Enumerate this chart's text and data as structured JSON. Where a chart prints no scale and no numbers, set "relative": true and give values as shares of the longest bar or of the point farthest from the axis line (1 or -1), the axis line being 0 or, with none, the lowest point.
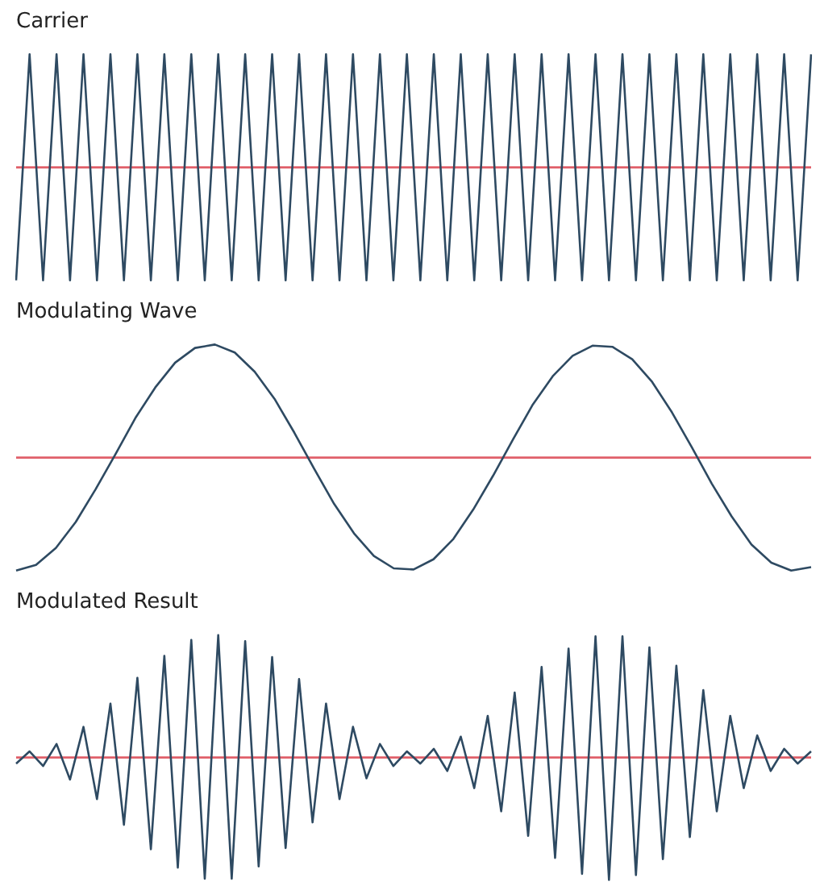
{
  "chart_data": [
    {
      "type": "line",
      "title": "Carrier",
      "relative": true,
      "categories": [
        null,
        null,
        null,
        null,
        null,
        null,
        null,
        null,
        null,
        null,
        null,
        null,
        null,
        null,
        null,
        null,
        null,
        null,
        null,
        null,
        null,
        null,
        null,
        null,
        null,
        null,
        null,
        null,
        null,
        null,
        null,
        null,
        null,
        null,
        null,
        null,
        null,
        null,
        null,
        null,
        null,
        null,
        null,
        null,
        null,
        null,
        null,
        null,
        null,
        null,
        null,
        null,
        null,
        null,
        null,
        null,
        null,
        null,
        null,
        null
      ],
      "series": [
        {
          "color": "#2e4a62",
          "values": [
            -1,
            1,
            -1,
            1,
            -1,
            1,
            -1,
            1,
            -1,
            1,
            -1,
            1,
            -1,
            1,
            -1,
            1,
            -1,
            1,
            -1,
            1,
            -1,
            1,
            -1,
            1,
            -1,
            1,
            -1,
            1,
            -1,
            1,
            -1,
            1,
            -1,
            1,
            -1,
            1,
            -1,
            1,
            -1,
            1,
            -1,
            1,
            -1,
            1,
            -1,
            1,
            -1,
            1,
            -1,
            1,
            -1,
            1,
            -1,
            1,
            -1,
            1,
            -1,
            1,
            -1,
            1
          ]
        }
      ],
      "ref_lines": [
        {
          "axis": "y",
          "value": 0,
          "color": "#e0606a"
        }
      ]
    },
    {
      "type": "line",
      "title": "Modulating Wave",
      "relative": true,
      "categories": [
        null,
        null,
        null,
        null,
        null,
        null,
        null,
        null,
        null,
        null,
        null,
        null,
        null,
        null,
        null,
        null,
        null,
        null,
        null,
        null,
        null,
        null,
        null,
        null,
        null,
        null,
        null,
        null,
        null,
        null,
        null,
        null,
        null,
        null,
        null,
        null,
        null,
        null,
        null,
        null,
        null
      ],
      "series": [
        {
          "color": "#2e4a62",
          "values": [
            -1,
            -0.95,
            -0.8,
            -0.57,
            -0.28,
            0.03,
            0.35,
            0.62,
            0.84,
            0.97,
            1,
            0.93,
            0.76,
            0.52,
            0.22,
            -0.1,
            -0.41,
            -0.67,
            -0.87,
            -0.98,
            -0.99,
            -0.9,
            -0.72,
            -0.46,
            -0.16,
            0.16,
            0.47,
            0.72,
            0.9,
            0.99,
            0.98,
            0.87,
            0.67,
            0.4,
            0.09,
            -0.23,
            -0.52,
            -0.77,
            -0.93,
            -1,
            -0.97
          ]
        }
      ],
      "ref_lines": [
        {
          "axis": "y",
          "value": 0,
          "color": "#e0606a"
        }
      ]
    },
    {
      "type": "line",
      "title": "Modulated Result",
      "relative": true,
      "categories": [
        null,
        null,
        null,
        null,
        null,
        null,
        null,
        null,
        null,
        null,
        null,
        null,
        null,
        null,
        null,
        null,
        null,
        null,
        null,
        null,
        null,
        null,
        null,
        null,
        null,
        null,
        null,
        null,
        null,
        null,
        null,
        null,
        null,
        null,
        null,
        null,
        null,
        null,
        null,
        null,
        null,
        null,
        null,
        null,
        null,
        null,
        null,
        null,
        null,
        null,
        null,
        null,
        null,
        null,
        null,
        null,
        null,
        null,
        null,
        null
      ],
      "series": [
        {
          "color": "#2e4a62",
          "values": [
            -0.05,
            0.05,
            -0.07,
            0.11,
            -0.18,
            0.25,
            -0.34,
            0.44,
            -0.55,
            0.65,
            -0.75,
            0.83,
            -0.9,
            0.96,
            -0.99,
            1,
            -0.99,
            0.95,
            -0.89,
            0.82,
            -0.74,
            0.64,
            -0.53,
            0.44,
            -0.34,
            0.25,
            -0.17,
            0.11,
            -0.07,
            0.05,
            -0.05,
            0.07,
            -0.11,
            0.17,
            -0.25,
            0.34,
            -0.44,
            0.53,
            -0.64,
            0.74,
            -0.82,
            0.89,
            -0.95,
            0.99,
            -1,
            0.99,
            -0.96,
            0.9,
            -0.83,
            0.75,
            -0.65,
            0.55,
            -0.44,
            0.34,
            -0.25,
            0.18,
            -0.11,
            0.07,
            -0.05,
            0.05
          ]
        }
      ],
      "ref_lines": [
        {
          "axis": "y",
          "value": 0,
          "color": "#e0606a"
        }
      ]
    }
  ]
}
